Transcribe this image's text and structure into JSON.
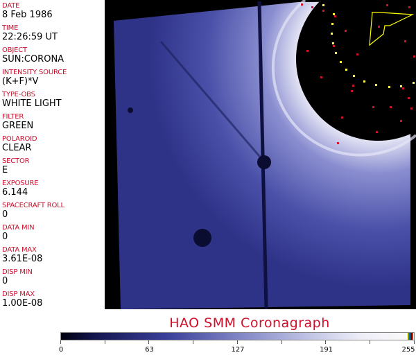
{
  "fields": [
    {
      "label": "DATE",
      "value": "8 Feb 1986"
    },
    {
      "label": "TIME",
      "value": "22:26:59 UT"
    },
    {
      "label": "OBJECT",
      "value": "SUN:CORONA"
    },
    {
      "label": "INTENSITY SOURCE",
      "value": "(K+F)*V"
    },
    {
      "label": "TYPE-OBS",
      "value": "WHITE LIGHT"
    },
    {
      "label": "FILTER",
      "value": "GREEN"
    },
    {
      "label": "POLAROID",
      "value": "CLEAR"
    },
    {
      "label": "SECTOR",
      "value": "E"
    },
    {
      "label": "EXPOSURE",
      "value": "6.144"
    },
    {
      "label": "SPACECRAFT ROLL",
      "value": "0"
    },
    {
      "label": "DATA MIN",
      "value": "0"
    },
    {
      "label": "DATA MAX",
      "value": "3.61E-08"
    },
    {
      "label": "DISP MIN",
      "value": "0"
    },
    {
      "label": "DISP MAX",
      "value": "1.00E-08"
    }
  ],
  "title": "HAO  SMM Coronagraph",
  "colorbar": {
    "ticks": [
      "0",
      "63",
      "127",
      "191",
      "255"
    ],
    "colors": {
      "low": "#000010",
      "mid": "#3a3f9a",
      "high": "#fafafa"
    }
  },
  "colors": {
    "label": "#c8102e",
    "title": "#d0102a"
  }
}
